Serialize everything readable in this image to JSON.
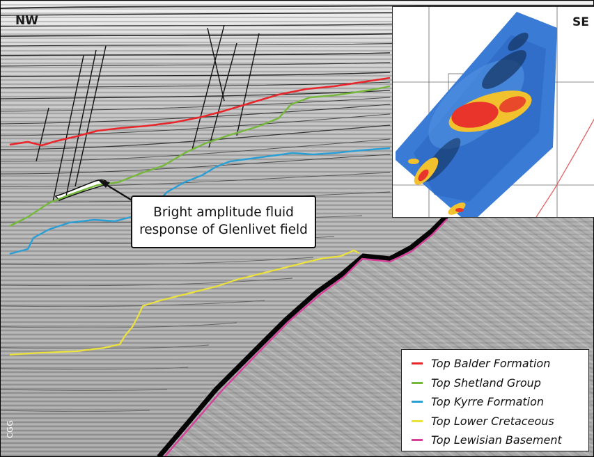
{
  "labels": {
    "left_direction": "NW",
    "right_direction": "SE",
    "callout_line1": "Bright amplitude fluid",
    "callout_line2": "response of Glenlivet field",
    "watermark": "CGG"
  },
  "legend": [
    {
      "label": "Top Balder Formation",
      "color": "#e8262b"
    },
    {
      "label": "Top Shetland Group",
      "color": "#76b83b"
    },
    {
      "label": "Top Kyrre Formation",
      "color": "#2a9fd6"
    },
    {
      "label": "Top Lower Cretaceous",
      "color": "#ece23a"
    },
    {
      "label": "Top Lewisian Basement",
      "color": "#d63f9a"
    }
  ],
  "colors": {
    "seismic_background": "#9a9a9a",
    "inset_map_base": "#3a7bd5",
    "inset_hot": "#e8342a",
    "inset_warm": "#f2c12e"
  }
}
